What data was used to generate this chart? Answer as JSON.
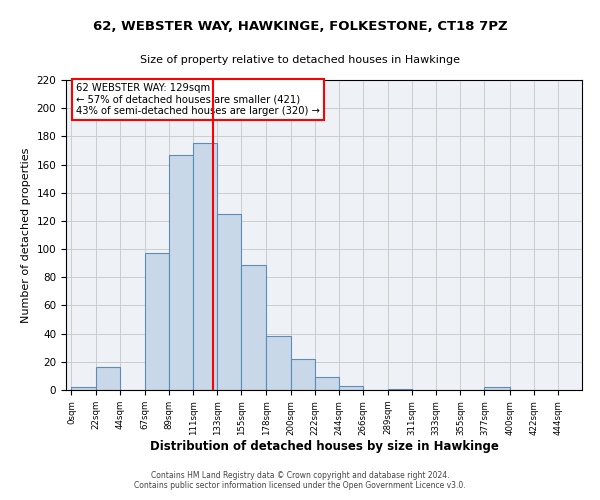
{
  "title": "62, WEBSTER WAY, HAWKINGE, FOLKESTONE, CT18 7PZ",
  "subtitle": "Size of property relative to detached houses in Hawkinge",
  "xlabel": "Distribution of detached houses by size in Hawkinge",
  "ylabel": "Number of detached properties",
  "bar_left_edges": [
    0,
    22,
    44,
    67,
    89,
    111,
    133,
    155,
    178,
    200,
    222,
    244,
    266,
    289,
    311,
    333,
    355,
    377,
    400,
    422
  ],
  "bar_widths": [
    22,
    22,
    23,
    22,
    22,
    22,
    22,
    23,
    22,
    22,
    22,
    22,
    23,
    22,
    22,
    22,
    22,
    23,
    22,
    22
  ],
  "bar_heights": [
    2,
    16,
    0,
    97,
    167,
    175,
    125,
    89,
    38,
    22,
    9,
    3,
    0,
    1,
    0,
    0,
    0,
    2,
    0,
    0
  ],
  "bar_color": "#c8d8e8",
  "bar_edge_color": "#5b8db8",
  "vline_x": 129,
  "vline_color": "red",
  "annotation_text": "62 WEBSTER WAY: 129sqm\n← 57% of detached houses are smaller (421)\n43% of semi-detached houses are larger (320) →",
  "annotation_box_color": "white",
  "annotation_box_edge_color": "red",
  "ylim": [
    0,
    220
  ],
  "yticks": [
    0,
    20,
    40,
    60,
    80,
    100,
    120,
    140,
    160,
    180,
    200,
    220
  ],
  "xtick_labels": [
    "0sqm",
    "22sqm",
    "44sqm",
    "67sqm",
    "89sqm",
    "111sqm",
    "133sqm",
    "155sqm",
    "178sqm",
    "200sqm",
    "222sqm",
    "244sqm",
    "266sqm",
    "289sqm",
    "311sqm",
    "333sqm",
    "355sqm",
    "377sqm",
    "400sqm",
    "422sqm",
    "444sqm"
  ],
  "xtick_positions": [
    0,
    22,
    44,
    67,
    89,
    111,
    133,
    155,
    178,
    200,
    222,
    244,
    266,
    289,
    311,
    333,
    355,
    377,
    400,
    422,
    444
  ],
  "grid_color": "#cccccc",
  "bg_color": "#eef2f7",
  "footer_line1": "Contains HM Land Registry data © Crown copyright and database right 2024.",
  "footer_line2": "Contains public sector information licensed under the Open Government Licence v3.0."
}
